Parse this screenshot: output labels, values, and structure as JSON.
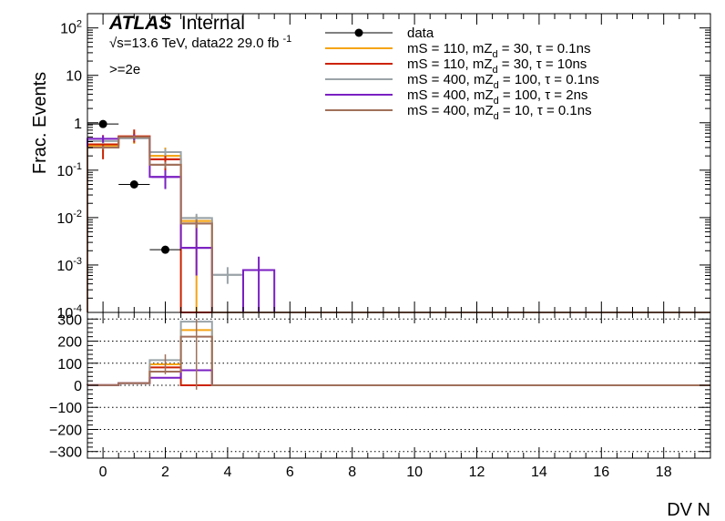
{
  "atlas_label": "ATLAS",
  "internal_label": "Internal",
  "energy_info": "√s=13.6 TeV, data22 29.0 fb",
  "lumi_superscript": "-1",
  "selection_label": ">=2e",
  "chart_data": [
    {
      "type": "step-histogram",
      "panel": "main",
      "ylabel": "Frac. Events",
      "xlabel": "DV N",
      "y_scale": "log",
      "ylim": [
        0.0001,
        200
      ],
      "xlim": [
        -0.5,
        19.5
      ],
      "x_ticks": [
        0,
        2,
        4,
        6,
        8,
        10,
        12,
        14,
        16,
        18
      ],
      "y_ticks": [
        {
          "value": 0.0001,
          "base": "10",
          "exp": "-4"
        },
        {
          "value": 0.001,
          "base": "10",
          "exp": "-3"
        },
        {
          "value": 0.01,
          "base": "10",
          "exp": "-2"
        },
        {
          "value": 0.1,
          "base": "10",
          "exp": "-1"
        },
        {
          "value": 1,
          "base": "1",
          "exp": ""
        },
        {
          "value": 10,
          "base": "10",
          "exp": ""
        },
        {
          "value": 100,
          "base": "10",
          "exp": "2"
        }
      ],
      "bin_edges": [
        -0.5,
        0.5,
        1.5,
        2.5,
        3.5,
        4.5,
        5.5
      ],
      "data": {
        "name": "data",
        "color": "#000000",
        "points": [
          {
            "x": 0,
            "y": 0.94
          },
          {
            "x": 1,
            "y": 0.05
          },
          {
            "x": 2,
            "y": 0.0021
          }
        ]
      },
      "legend_placement": "top-right",
      "series": [
        {
          "name": "mS = 110, mZ",
          "sub": "d",
          "rest": " = 30, τ = 0.1ns",
          "color": "#f5a416",
          "values": [
            0.33,
            0.48,
            0.2,
            0.0085,
            null,
            null
          ],
          "err_low": [
            0.25,
            0.36,
            0.11,
            0.0,
            null,
            null
          ],
          "err_high": [
            0.44,
            0.62,
            0.3,
            0.011,
            null,
            null
          ]
        },
        {
          "name": "mS = 110, mZ",
          "sub": "d",
          "rest": " = 30, τ = 10ns",
          "color": "#cc2200",
          "values": [
            0.35,
            0.52,
            0.17,
            null,
            null,
            null
          ],
          "err_low": [
            0.17,
            0.38,
            0.05,
            null,
            null,
            null
          ],
          "err_high": [
            0.55,
            0.72,
            0.28,
            null,
            null,
            null
          ]
        },
        {
          "name": "mS = 400, mZ",
          "sub": "d",
          "rest": " = 100, τ = 0.1ns",
          "color": "#9aa3a8",
          "values": [
            0.41,
            0.47,
            0.24,
            0.0098,
            0.00062,
            null
          ],
          "err_low": [
            0.36,
            0.42,
            0.2,
            0.008,
            0.0004,
            null
          ],
          "err_high": [
            0.46,
            0.52,
            0.28,
            0.012,
            0.0009,
            null
          ]
        },
        {
          "name": "mS = 400, mZ",
          "sub": "d",
          "rest": " = 100, τ = 2ns",
          "color": "#7a1fc2",
          "values": [
            0.46,
            0.5,
            0.072,
            0.0023,
            null,
            0.00078
          ],
          "err_low": [
            0.38,
            0.43,
            0.04,
            0.0006,
            null,
            0.0001
          ],
          "err_high": [
            0.54,
            0.57,
            0.1,
            0.008,
            null,
            0.0015
          ]
        },
        {
          "name": "mS = 400, mZ",
          "sub": "d",
          "rest": " = 10, τ = 0.1ns",
          "color": "#a0705a",
          "values": [
            0.3,
            0.5,
            0.13,
            0.0075,
            null,
            null
          ],
          "err_low": [
            0.27,
            0.46,
            0.11,
            0.006,
            null,
            null
          ],
          "err_high": [
            0.33,
            0.54,
            0.15,
            0.009,
            null,
            null
          ]
        }
      ]
    },
    {
      "type": "step-histogram",
      "panel": "ratio",
      "ylim": [
        -330,
        330
      ],
      "y_ticks": [
        300,
        200,
        100,
        0,
        -100,
        -200,
        -300
      ],
      "y_tick_labels": [
        "300",
        "200",
        "100",
        "0",
        "−100",
        "−200",
        "−300"
      ],
      "grid": true,
      "bin_edges": [
        -0.5,
        0.5,
        1.5,
        2.5,
        3.5
      ],
      "series": [
        {
          "name": "mS = 110, mZd = 30, τ = 0.1ns",
          "color": "#f5a416",
          "values": [
            0.35,
            9.6,
            95,
            250
          ]
        },
        {
          "name": "mS = 110, mZd = 30, τ = 10ns",
          "color": "#cc2200",
          "values": [
            0.37,
            10.4,
            81,
            0
          ]
        },
        {
          "name": "mS = 400, mZd = 100, τ = 0.1ns",
          "color": "#9aa3a8",
          "values": [
            0.44,
            9.4,
            114,
            288
          ]
        },
        {
          "name": "mS = 400, mZd = 100, τ = 2ns",
          "color": "#7a1fc2",
          "values": [
            0.49,
            10,
            34,
            68
          ]
        },
        {
          "name": "mS = 400, mZd = 10, τ = 0.1ns",
          "color": "#a0705a",
          "values": [
            0.32,
            10,
            62,
            220
          ]
        }
      ],
      "errors": [
        {
          "color": "#a0705a",
          "x": 2,
          "low": 50,
          "high": 140
        },
        {
          "color": "#a0705a",
          "x": 3,
          "low": -20,
          "high": 300
        }
      ]
    }
  ]
}
